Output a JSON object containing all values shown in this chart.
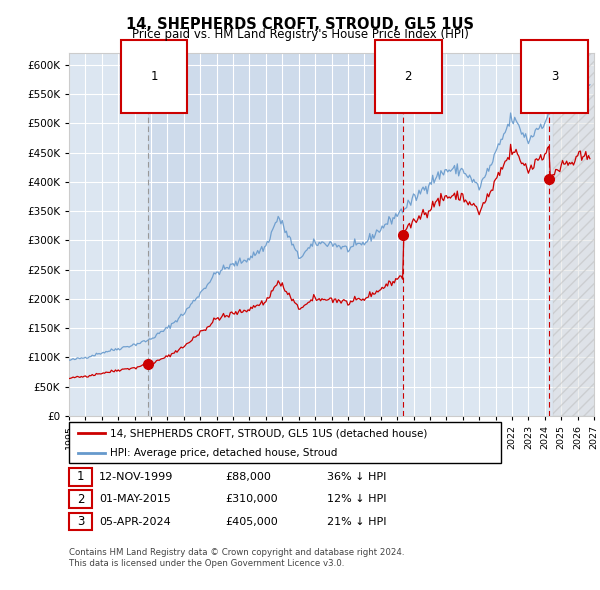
{
  "title": "14, SHEPHERDS CROFT, STROUD, GL5 1US",
  "subtitle": "Price paid vs. HM Land Registry's House Price Index (HPI)",
  "sale_prices": [
    88000,
    310000,
    405000
  ],
  "legend_line1": "14, SHEPHERDS CROFT, STROUD, GL5 1US (detached house)",
  "legend_line2": "HPI: Average price, detached house, Stroud",
  "table_rows": [
    [
      "1",
      "12-NOV-1999",
      "£88,000",
      "36% ↓ HPI"
    ],
    [
      "2",
      "01-MAY-2015",
      "£310,000",
      "12% ↓ HPI"
    ],
    [
      "3",
      "05-APR-2024",
      "£405,000",
      "21% ↓ HPI"
    ]
  ],
  "footnote1": "Contains HM Land Registry data © Crown copyright and database right 2024.",
  "footnote2": "This data is licensed under the Open Government Licence v3.0.",
  "xmin": 1995.0,
  "xmax": 2027.0,
  "ymin": 0,
  "ymax": 620000,
  "property_color": "#cc0000",
  "hpi_color": "#6699cc",
  "sale1_line_color": "#aaaaaa",
  "sale23_line_color": "#cc0000",
  "plot_bg_color": "#dce6f1",
  "shaded_bg_color": "#c8d8ee",
  "grid_color": "#ffffff",
  "box_edge_color": "#cc0000"
}
